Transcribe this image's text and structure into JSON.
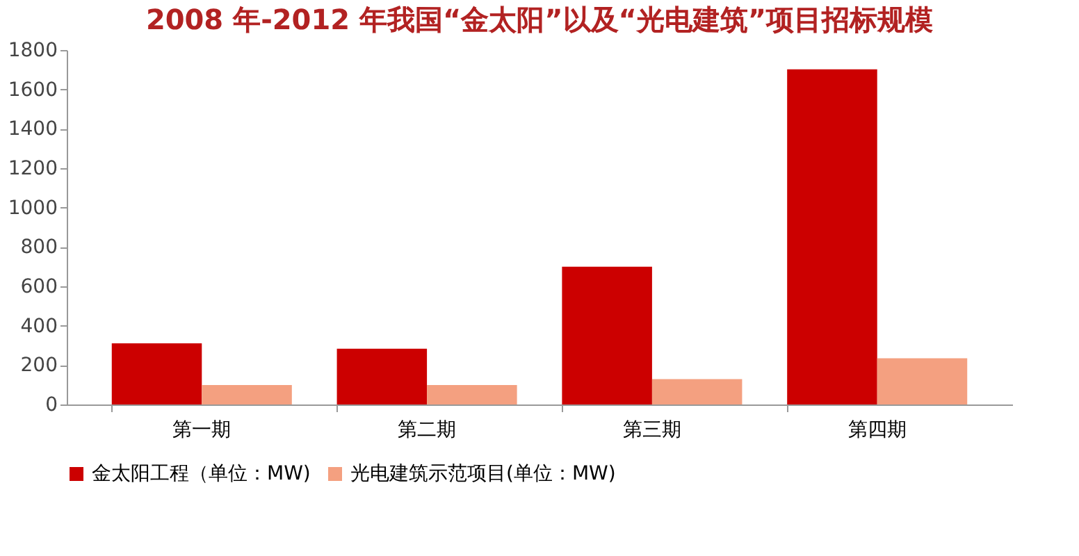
{
  "chart_data": {
    "type": "bar",
    "title": "2008 年-2012 年我国“金太阳”以及“光电建筑”项目招标规模",
    "categories": [
      "第一期",
      "第二期",
      "第三期",
      "第四期"
    ],
    "series": [
      {
        "name": "金太阳工程（单位：MW)",
        "color": "#cc0000",
        "values": [
          311,
          283,
          700,
          1702
        ]
      },
      {
        "name": "光电建筑示范项目(单位：MW)",
        "color": "#f4a080",
        "values": [
          99,
          99,
          129,
          235
        ]
      }
    ],
    "ylim": [
      0,
      1800
    ],
    "yticks": [
      0,
      200,
      400,
      600,
      800,
      1000,
      1200,
      1400,
      1600,
      1800
    ],
    "grid": false,
    "legend": "bottom"
  }
}
